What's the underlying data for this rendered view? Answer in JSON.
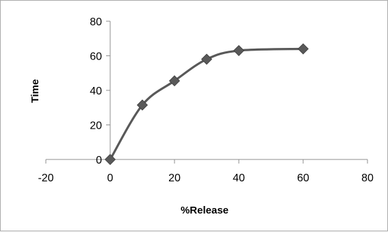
{
  "chart_data": {
    "type": "scatter",
    "title": "",
    "xlabel": "%Release",
    "ylabel": "Time",
    "xlim": [
      -20,
      80
    ],
    "ylim": [
      0,
      80
    ],
    "xticks": [
      -20,
      0,
      20,
      40,
      60,
      80
    ],
    "yticks": [
      0,
      20,
      40,
      60,
      80
    ],
    "grid": false,
    "legend": "none",
    "smooth": true,
    "marker": "diamond",
    "series": [
      {
        "x": [
          0,
          10,
          20,
          30,
          40,
          60
        ],
        "y": [
          0,
          31.5,
          45.5,
          58,
          63,
          64
        ],
        "color": "#595959"
      }
    ]
  }
}
